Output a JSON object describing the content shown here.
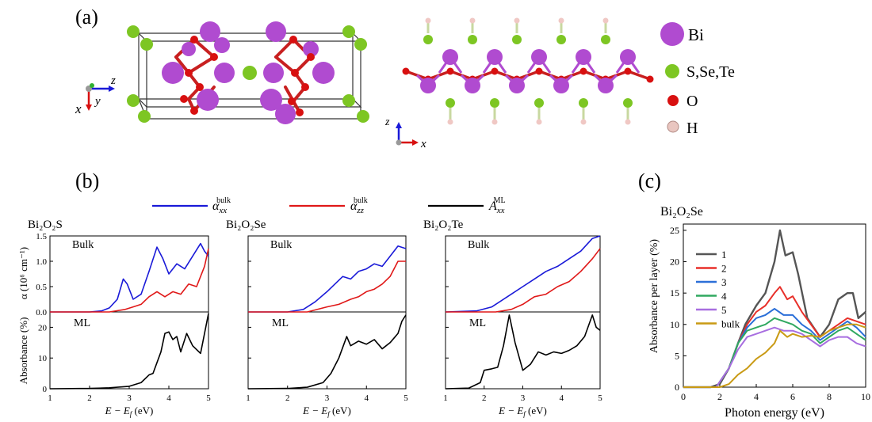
{
  "panel_labels": {
    "a": "(a)",
    "b": "(b)",
    "c": "(c)"
  },
  "structure": {
    "legend": [
      {
        "label": "Bi",
        "color": "#b04bd0"
      },
      {
        "label": "S,Se,Te",
        "color": "#7dc623"
      },
      {
        "label": "O",
        "color": "#d81010"
      },
      {
        "label": "H",
        "color": "#e9c6c0"
      }
    ],
    "axes_left": {
      "z": "z",
      "x": "x",
      "y": "y"
    },
    "axes_right": {
      "z": "z",
      "x": "x"
    }
  },
  "panel_b": {
    "legend": [
      {
        "sym": "α",
        "sub": "xx",
        "sup": "bulk",
        "color": "#1a1ad8"
      },
      {
        "sym": "α",
        "sub": "zz",
        "sup": "bulk",
        "color": "#e01818"
      },
      {
        "sym": "A",
        "sub": "xx",
        "sup": "ML",
        "color": "#000000"
      }
    ],
    "ylabel_top": "α (10⁶ cm⁻¹)",
    "ylabel_bottom": "Absorbance (%)",
    "xlabel": "E − E",
    "xlabel_sub": "f",
    "xlabel_unit": " (eV)",
    "top_label": "Bulk",
    "bottom_label": "ML",
    "materials": [
      "Bi₂O₂S",
      "Bi₂O₂Se",
      "Bi₂O₂Te"
    ],
    "yticks_top": [
      "0.0",
      "0.5",
      "1.0",
      "1.5"
    ],
    "yticks_bottom": [
      "0",
      "10",
      "20"
    ],
    "xticks": [
      "1",
      "2",
      "3",
      "4",
      "5"
    ]
  },
  "panel_c": {
    "title": "Bi₂O₂Se",
    "xlabel": "Photon energy (eV)",
    "ylabel": "Absorbance per layer (%)",
    "xticks": [
      "0",
      "2",
      "4",
      "6",
      "8",
      "10"
    ],
    "yticks": [
      "0",
      "5",
      "10",
      "15",
      "20",
      "25"
    ]
  },
  "chart_data": [
    {
      "type": "line",
      "panel": "b",
      "material": "Bi₂O₂S",
      "top": {
        "xlim": [
          1,
          5
        ],
        "ylim": [
          0,
          1.5
        ],
        "series": [
          {
            "name": "α_xx^bulk",
            "color": "#1a1ad8",
            "x": [
              1,
              2,
              2.3,
              2.5,
              2.7,
              2.85,
              2.95,
              3.1,
              3.3,
              3.5,
              3.7,
              3.85,
              4.0,
              4.2,
              4.4,
              4.6,
              4.8,
              4.9,
              5.0
            ],
            "y": [
              0,
              0,
              0.02,
              0.08,
              0.25,
              0.65,
              0.55,
              0.25,
              0.35,
              0.8,
              1.28,
              1.05,
              0.75,
              0.95,
              0.85,
              1.1,
              1.35,
              1.2,
              1.1
            ]
          },
          {
            "name": "α_zz^bulk",
            "color": "#e01818",
            "x": [
              1,
              2.5,
              2.9,
              3.1,
              3.3,
              3.5,
              3.7,
              3.9,
              4.1,
              4.3,
              4.5,
              4.7,
              4.9,
              5.0
            ],
            "y": [
              0,
              0,
              0.05,
              0.1,
              0.15,
              0.3,
              0.4,
              0.3,
              0.4,
              0.35,
              0.55,
              0.5,
              0.9,
              1.25
            ]
          }
        ]
      },
      "bottom": {
        "xlim": [
          1,
          5
        ],
        "ylim": [
          0,
          25
        ],
        "series": [
          {
            "name": "A_xx^ML",
            "color": "#000000",
            "x": [
              1,
              2,
              2.5,
              3,
              3.3,
              3.5,
              3.6,
              3.8,
              3.9,
              4.0,
              4.1,
              4.2,
              4.3,
              4.45,
              4.6,
              4.8,
              4.9,
              5.0
            ],
            "y": [
              0,
              0.1,
              0.3,
              0.8,
              2,
              4.5,
              5,
              12,
              18,
              18.5,
              16,
              17,
              12,
              18,
              14,
              11.5,
              18,
              24.5
            ]
          }
        ]
      }
    },
    {
      "type": "line",
      "panel": "b",
      "material": "Bi₂O₂Se",
      "top": {
        "xlim": [
          1,
          5
        ],
        "ylim": [
          0,
          1.5
        ],
        "series": [
          {
            "name": "α_xx^bulk",
            "color": "#1a1ad8",
            "x": [
              1,
              2,
              2.4,
              2.7,
              3.0,
              3.2,
              3.4,
              3.6,
              3.8,
              4.0,
              4.2,
              4.4,
              4.6,
              4.8,
              5.0
            ],
            "y": [
              0,
              0,
              0.05,
              0.2,
              0.4,
              0.55,
              0.7,
              0.65,
              0.8,
              0.85,
              0.95,
              0.9,
              1.1,
              1.3,
              1.25
            ]
          },
          {
            "name": "α_zz^bulk",
            "color": "#e01818",
            "x": [
              1,
              2.5,
              3.0,
              3.3,
              3.6,
              3.8,
              4.0,
              4.2,
              4.4,
              4.6,
              4.8,
              5.0
            ],
            "y": [
              0,
              0,
              0.1,
              0.15,
              0.25,
              0.3,
              0.4,
              0.45,
              0.55,
              0.7,
              1.0,
              1.0
            ]
          }
        ]
      },
      "bottom": {
        "xlim": [
          1,
          5
        ],
        "ylim": [
          0,
          25
        ],
        "series": [
          {
            "name": "A_xx^ML",
            "color": "#000000",
            "x": [
              1,
              2,
              2.5,
              2.9,
              3.1,
              3.3,
              3.5,
              3.6,
              3.8,
              4.0,
              4.2,
              4.4,
              4.6,
              4.8,
              4.9,
              5.0
            ],
            "y": [
              0,
              0.1,
              0.5,
              2,
              5,
              10,
              17,
              14,
              15.5,
              14.5,
              16,
              13,
              15,
              18,
              22,
              24
            ]
          }
        ]
      }
    },
    {
      "type": "line",
      "panel": "b",
      "material": "Bi₂O₂Te",
      "top": {
        "xlim": [
          1,
          5
        ],
        "ylim": [
          0,
          1.5
        ],
        "series": [
          {
            "name": "α_xx^bulk",
            "color": "#1a1ad8",
            "x": [
              1,
              1.8,
              2.2,
              2.6,
              3.0,
              3.3,
              3.6,
              3.9,
              4.2,
              4.5,
              4.8,
              5.0
            ],
            "y": [
              0,
              0.02,
              0.1,
              0.3,
              0.5,
              0.65,
              0.8,
              0.9,
              1.05,
              1.2,
              1.45,
              1.55
            ]
          },
          {
            "name": "α_zz^bulk",
            "color": "#e01818",
            "x": [
              1,
              2.3,
              2.7,
              3.0,
              3.3,
              3.6,
              3.9,
              4.2,
              4.5,
              4.8,
              5.0
            ],
            "y": [
              0,
              0,
              0.05,
              0.15,
              0.3,
              0.35,
              0.5,
              0.6,
              0.8,
              1.05,
              1.25
            ]
          }
        ]
      },
      "bottom": {
        "xlim": [
          1,
          5
        ],
        "ylim": [
          0,
          25
        ],
        "series": [
          {
            "name": "A_xx^ML",
            "color": "#000000",
            "x": [
              1,
              1.6,
              1.9,
              2.0,
              2.2,
              2.35,
              2.5,
              2.65,
              2.8,
              3.0,
              3.2,
              3.4,
              3.6,
              3.8,
              4.0,
              4.2,
              4.4,
              4.6,
              4.8,
              4.9,
              5.0
            ],
            "y": [
              0,
              0.2,
              2,
              6,
              6.5,
              7,
              14,
              24,
              15,
              6,
              8,
              12,
              11,
              12,
              11.5,
              12.5,
              14,
              17,
              24,
              20,
              19
            ]
          }
        ]
      }
    },
    {
      "type": "line",
      "panel": "c",
      "title": "Bi₂O₂Se",
      "xlabel": "Photon energy (eV)",
      "ylabel": "Absorbance per layer (%)",
      "xlim": [
        0,
        10
      ],
      "ylim": [
        0,
        26
      ],
      "series": [
        {
          "name": "1",
          "color": "#555555",
          "x": [
            0,
            1.5,
            2,
            2.5,
            3,
            3.4,
            3.6,
            4,
            4.5,
            5,
            5.3,
            5.6,
            6,
            6.3,
            6.8,
            7.5,
            8,
            8.5,
            9,
            9.3,
            9.6,
            10
          ],
          "y": [
            0,
            0,
            0.5,
            3,
            7,
            10,
            11,
            13,
            15,
            20,
            25,
            21,
            21.5,
            18,
            11,
            8,
            10,
            14,
            15,
            15,
            11,
            12
          ]
        },
        {
          "name": "2",
          "color": "#e8302a",
          "x": [
            0,
            1.8,
            2.5,
            3,
            3.5,
            4,
            4.5,
            5,
            5.3,
            5.7,
            6,
            6.5,
            7,
            7.5,
            8,
            8.5,
            9,
            9.5,
            10
          ],
          "y": [
            0,
            0,
            3,
            7,
            10,
            12,
            13,
            15,
            16,
            14,
            14.5,
            12,
            10,
            8,
            9,
            10,
            11,
            10.5,
            10
          ]
        },
        {
          "name": "3",
          "color": "#2b6fd8",
          "x": [
            0,
            1.8,
            2.5,
            3,
            3.5,
            4,
            4.5,
            5,
            5.5,
            6,
            6.5,
            7,
            7.5,
            8,
            8.5,
            9,
            9.5,
            10
          ],
          "y": [
            0,
            0,
            3,
            7,
            9.5,
            11,
            11.5,
            12.5,
            11.5,
            11.5,
            10,
            9,
            7.5,
            8.5,
            9.5,
            10.5,
            9.5,
            8
          ]
        },
        {
          "name": "4",
          "color": "#30a860",
          "x": [
            0,
            1.8,
            2.5,
            3,
            3.5,
            4,
            4.5,
            5,
            5.5,
            6,
            6.5,
            7,
            7.5,
            8,
            8.5,
            9,
            9.5,
            10
          ],
          "y": [
            0,
            0,
            3,
            7,
            9,
            9.5,
            10,
            11,
            10.5,
            10,
            9,
            8.5,
            7,
            8,
            9,
            9.5,
            8.5,
            7.5
          ]
        },
        {
          "name": "5",
          "color": "#a86ee0",
          "x": [
            0,
            1.8,
            2.5,
            3,
            3.5,
            4,
            4.5,
            5,
            5.5,
            6,
            6.5,
            7,
            7.5,
            8,
            8.5,
            9,
            9.5,
            10
          ],
          "y": [
            0,
            0,
            3,
            6,
            8,
            8.5,
            9,
            9.5,
            9,
            9,
            8.5,
            7.5,
            6.5,
            7.5,
            8,
            8,
            7,
            6.5
          ]
        },
        {
          "name": "bulk",
          "color": "#c99a14",
          "x": [
            0,
            2,
            2.5,
            3,
            3.5,
            4,
            4.5,
            5,
            5.3,
            5.7,
            6,
            6.5,
            7,
            7.5,
            8,
            8.5,
            9,
            9.5,
            10
          ],
          "y": [
            0,
            0,
            0.5,
            2,
            3,
            4.5,
            5.5,
            7,
            9,
            8,
            8.5,
            8,
            8.2,
            8,
            9,
            9.5,
            10,
            10,
            9.5
          ]
        }
      ]
    }
  ]
}
